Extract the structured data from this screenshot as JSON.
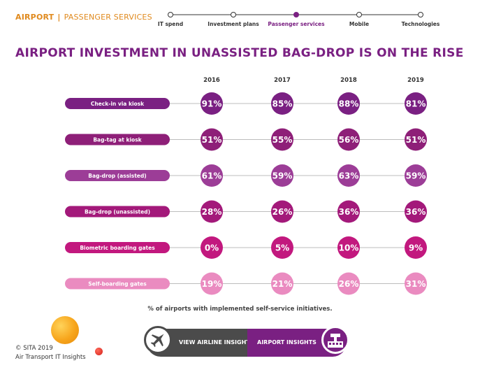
{
  "header": {
    "section": "AIRPORT",
    "separator": "|",
    "subsection": "PASSENGER SERVICES"
  },
  "stepper": {
    "steps": [
      "IT spend",
      "Investment plans",
      "Passenger services",
      "Mobile",
      "Technologies"
    ],
    "active_index": 2
  },
  "colors": {
    "purple": "#7a2082",
    "rows": [
      "#7a2082",
      "#8e1f78",
      "#9c3d97",
      "#a3197a",
      "#c2187e",
      "#ea8bc0"
    ],
    "orange": "#e08a1e",
    "dark": "#4b4b4b"
  },
  "chart_data": {
    "type": "table",
    "title": "AIRPORT INVESTMENT IN UNASSISTED BAG-DROP IS ON THE RISE",
    "columns": [
      "2016",
      "2017",
      "2018",
      "2019"
    ],
    "rows": [
      {
        "label": "Check-in via kiosk",
        "values": [
          "91%",
          "85%",
          "88%",
          "81%"
        ]
      },
      {
        "label": "Bag-tag at kiosk",
        "values": [
          "51%",
          "55%",
          "56%",
          "51%"
        ]
      },
      {
        "label": "Bag-drop (assisted)",
        "values": [
          "61%",
          "59%",
          "63%",
          "59%"
        ]
      },
      {
        "label": "Bag-drop (unassisted)",
        "values": [
          "28%",
          "26%",
          "36%",
          "36%"
        ]
      },
      {
        "label": "Biometric boarding gates",
        "values": [
          "0%",
          "5%",
          "10%",
          "9%"
        ]
      },
      {
        "label": "Self-boarding gates",
        "values": [
          "19%",
          "21%",
          "26%",
          "31%"
        ]
      }
    ],
    "caption": "% of airports with implemented self-service initiatives."
  },
  "footer": {
    "copyright": "© SITA 2019",
    "publication": "Air Transport IT Insights",
    "airline_button": "VIEW AIRLINE INSIGHTS",
    "airport_button": "AIRPORT INSIGHTS",
    "plane_icon": "plane-icon",
    "tower_icon": "airport-tower-icon"
  }
}
